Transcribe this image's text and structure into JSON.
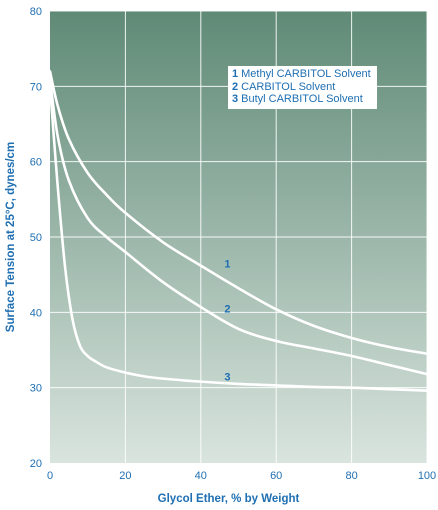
{
  "chart_data": {
    "type": "line",
    "title": "",
    "xlabel": "Glycol Ether, % by Weight",
    "ylabel": "Surface Tension at 25°C, dynes/cm",
    "xlim": [
      0,
      100
    ],
    "ylim": [
      20,
      80
    ],
    "xticks": [
      0,
      20,
      40,
      60,
      80,
      100
    ],
    "yticks": [
      20,
      30,
      40,
      50,
      60,
      70,
      80
    ],
    "grid": true,
    "legend_position": "top-right",
    "background": {
      "top": "#5f8a76",
      "bottom": "#d9e4de"
    },
    "series": [
      {
        "name": "Methyl CARBITOL Solvent",
        "label": "1",
        "label_at": [
          46,
          46.5
        ],
        "x": [
          0,
          2,
          5,
          10,
          15,
          20,
          30,
          40,
          50,
          60,
          70,
          80,
          90,
          100
        ],
        "y": [
          72,
          67.5,
          63,
          58.5,
          55.6,
          53.2,
          49.3,
          46.2,
          43.2,
          40.4,
          38.2,
          36.6,
          35.4,
          34.5
        ]
      },
      {
        "name": "CARBITOL Solvent",
        "label": "2",
        "label_at": [
          46,
          40.5
        ],
        "x": [
          0,
          2,
          5,
          10,
          15,
          20,
          30,
          40,
          50,
          60,
          70,
          80,
          90,
          100
        ],
        "y": [
          71,
          63.5,
          57.5,
          52.5,
          50,
          48,
          44,
          40.7,
          37.8,
          36.2,
          35.2,
          34.2,
          33.0,
          31.8
        ]
      },
      {
        "name": "Butyl CARBITOL Solvent",
        "label": "3",
        "label_at": [
          46,
          31.5
        ],
        "x": [
          0,
          2,
          4,
          6,
          8,
          10,
          12,
          15,
          20,
          25,
          30,
          40,
          50,
          60,
          70,
          80,
          90,
          100
        ],
        "y": [
          70,
          57,
          46,
          39,
          35.5,
          34.2,
          33.5,
          32.7,
          32.0,
          31.5,
          31.2,
          30.8,
          30.5,
          30.3,
          30.1,
          30.0,
          29.8,
          29.6
        ]
      }
    ]
  }
}
